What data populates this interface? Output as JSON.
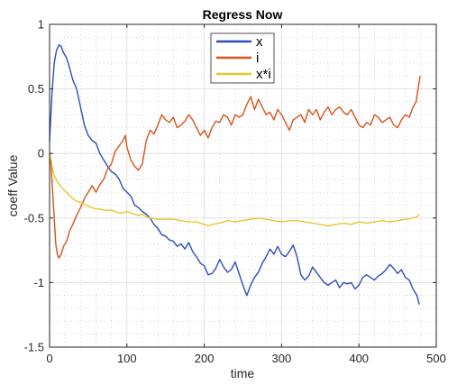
{
  "chart_data": {
    "type": "line",
    "title": "Regress Now",
    "xlabel": "time",
    "ylabel": "coeff Value",
    "xlim": [
      0,
      500
    ],
    "ylim": [
      -1.5,
      1
    ],
    "xticks": [
      0,
      100,
      200,
      300,
      400,
      500
    ],
    "yticks": [
      -1.5,
      -1,
      -0.5,
      0,
      0.5,
      1
    ],
    "xtick_labels": [
      "0",
      "100",
      "200",
      "300",
      "400",
      "500"
    ],
    "ytick_labels": [
      "-1.5",
      "-1",
      "-0.5",
      "0",
      "0.5",
      "1"
    ],
    "grid": true,
    "minor_grid": true,
    "legend_position": "top-center",
    "series": [
      {
        "name": "x",
        "color": "#2c4fb8",
        "points": [
          [
            0,
            0.1
          ],
          [
            3,
            0.45
          ],
          [
            6,
            0.7
          ],
          [
            9,
            0.8
          ],
          [
            12,
            0.84
          ],
          [
            15,
            0.83
          ],
          [
            18,
            0.78
          ],
          [
            22,
            0.74
          ],
          [
            26,
            0.66
          ],
          [
            30,
            0.57
          ],
          [
            35,
            0.5
          ],
          [
            40,
            0.36
          ],
          [
            45,
            0.22
          ],
          [
            50,
            0.14
          ],
          [
            55,
            0.1
          ],
          [
            60,
            0.08
          ],
          [
            65,
            0.0
          ],
          [
            70,
            -0.05
          ],
          [
            75,
            -0.1
          ],
          [
            80,
            -0.14
          ],
          [
            85,
            -0.16
          ],
          [
            90,
            -0.2
          ],
          [
            95,
            -0.27
          ],
          [
            100,
            -0.3
          ],
          [
            105,
            -0.33
          ],
          [
            110,
            -0.4
          ],
          [
            115,
            -0.42
          ],
          [
            120,
            -0.45
          ],
          [
            125,
            -0.47
          ],
          [
            130,
            -0.5
          ],
          [
            135,
            -0.55
          ],
          [
            140,
            -0.58
          ],
          [
            145,
            -0.63
          ],
          [
            150,
            -0.64
          ],
          [
            155,
            -0.67
          ],
          [
            160,
            -0.68
          ],
          [
            165,
            -0.72
          ],
          [
            170,
            -0.7
          ],
          [
            175,
            -0.74
          ],
          [
            180,
            -0.69
          ],
          [
            185,
            -0.76
          ],
          [
            190,
            -0.8
          ],
          [
            195,
            -0.85
          ],
          [
            200,
            -0.87
          ],
          [
            205,
            -0.94
          ],
          [
            210,
            -0.93
          ],
          [
            215,
            -0.89
          ],
          [
            220,
            -0.82
          ],
          [
            225,
            -0.88
          ],
          [
            230,
            -0.92
          ],
          [
            235,
            -0.9
          ],
          [
            240,
            -0.84
          ],
          [
            245,
            -0.93
          ],
          [
            250,
            -1.02
          ],
          [
            255,
            -1.1
          ],
          [
            260,
            -1.02
          ],
          [
            265,
            -0.96
          ],
          [
            270,
            -0.92
          ],
          [
            275,
            -0.85
          ],
          [
            280,
            -0.8
          ],
          [
            285,
            -0.74
          ],
          [
            290,
            -0.78
          ],
          [
            295,
            -0.72
          ],
          [
            300,
            -0.78
          ],
          [
            305,
            -0.8
          ],
          [
            310,
            -0.76
          ],
          [
            315,
            -0.71
          ],
          [
            320,
            -0.8
          ],
          [
            325,
            -0.94
          ],
          [
            330,
            -0.98
          ],
          [
            335,
            -0.95
          ],
          [
            340,
            -0.88
          ],
          [
            345,
            -0.92
          ],
          [
            350,
            -0.96
          ],
          [
            355,
            -1.0
          ],
          [
            360,
            -1.02
          ],
          [
            365,
            -1.0
          ],
          [
            370,
            -0.98
          ],
          [
            375,
            -1.04
          ],
          [
            380,
            -1.0
          ],
          [
            385,
            -1.01
          ],
          [
            390,
            -1.0
          ],
          [
            395,
            -1.05
          ],
          [
            400,
            -1.02
          ],
          [
            405,
            -0.96
          ],
          [
            410,
            -0.94
          ],
          [
            415,
            -0.96
          ],
          [
            420,
            -0.98
          ],
          [
            425,
            -0.95
          ],
          [
            430,
            -0.93
          ],
          [
            435,
            -0.9
          ],
          [
            440,
            -0.86
          ],
          [
            445,
            -0.89
          ],
          [
            450,
            -0.93
          ],
          [
            455,
            -0.9
          ],
          [
            460,
            -0.96
          ],
          [
            465,
            -0.98
          ],
          [
            470,
            -1.05
          ],
          [
            475,
            -1.1
          ],
          [
            478,
            -1.17
          ]
        ]
      },
      {
        "name": "i",
        "color": "#d95319",
        "points": [
          [
            0,
            0.0
          ],
          [
            2,
            -0.1
          ],
          [
            4,
            -0.3
          ],
          [
            6,
            -0.5
          ],
          [
            8,
            -0.7
          ],
          [
            10,
            -0.78
          ],
          [
            12,
            -0.81
          ],
          [
            15,
            -0.78
          ],
          [
            18,
            -0.72
          ],
          [
            22,
            -0.68
          ],
          [
            26,
            -0.6
          ],
          [
            30,
            -0.55
          ],
          [
            35,
            -0.48
          ],
          [
            40,
            -0.42
          ],
          [
            45,
            -0.35
          ],
          [
            50,
            -0.3
          ],
          [
            55,
            -0.25
          ],
          [
            60,
            -0.3
          ],
          [
            65,
            -0.24
          ],
          [
            70,
            -0.2
          ],
          [
            75,
            -0.12
          ],
          [
            80,
            -0.08
          ],
          [
            85,
            0.02
          ],
          [
            90,
            0.06
          ],
          [
            95,
            0.1
          ],
          [
            98,
            0.14
          ],
          [
            100,
            0.05
          ],
          [
            105,
            -0.05
          ],
          [
            110,
            -0.1
          ],
          [
            115,
            -0.13
          ],
          [
            120,
            -0.08
          ],
          [
            125,
            0.1
          ],
          [
            130,
            0.18
          ],
          [
            135,
            0.15
          ],
          [
            140,
            0.22
          ],
          [
            145,
            0.3
          ],
          [
            150,
            0.26
          ],
          [
            155,
            0.24
          ],
          [
            160,
            0.28
          ],
          [
            165,
            0.2
          ],
          [
            170,
            0.22
          ],
          [
            175,
            0.25
          ],
          [
            180,
            0.3
          ],
          [
            185,
            0.26
          ],
          [
            190,
            0.2
          ],
          [
            195,
            0.14
          ],
          [
            200,
            0.18
          ],
          [
            205,
            0.12
          ],
          [
            210,
            0.2
          ],
          [
            215,
            0.25
          ],
          [
            220,
            0.24
          ],
          [
            225,
            0.3
          ],
          [
            230,
            0.28
          ],
          [
            235,
            0.22
          ],
          [
            240,
            0.3
          ],
          [
            245,
            0.28
          ],
          [
            250,
            0.3
          ],
          [
            255,
            0.38
          ],
          [
            260,
            0.44
          ],
          [
            265,
            0.34
          ],
          [
            270,
            0.42
          ],
          [
            275,
            0.36
          ],
          [
            280,
            0.3
          ],
          [
            285,
            0.32
          ],
          [
            290,
            0.26
          ],
          [
            295,
            0.34
          ],
          [
            300,
            0.3
          ],
          [
            305,
            0.24
          ],
          [
            310,
            0.18
          ],
          [
            315,
            0.26
          ],
          [
            320,
            0.28
          ],
          [
            325,
            0.3
          ],
          [
            330,
            0.24
          ],
          [
            335,
            0.34
          ],
          [
            340,
            0.3
          ],
          [
            345,
            0.34
          ],
          [
            350,
            0.26
          ],
          [
            355,
            0.32
          ],
          [
            360,
            0.36
          ],
          [
            365,
            0.3
          ],
          [
            370,
            0.34
          ],
          [
            375,
            0.36
          ],
          [
            380,
            0.32
          ],
          [
            385,
            0.3
          ],
          [
            390,
            0.34
          ],
          [
            395,
            0.28
          ],
          [
            400,
            0.22
          ],
          [
            405,
            0.2
          ],
          [
            410,
            0.24
          ],
          [
            415,
            0.22
          ],
          [
            420,
            0.3
          ],
          [
            425,
            0.28
          ],
          [
            430,
            0.24
          ],
          [
            435,
            0.26
          ],
          [
            440,
            0.28
          ],
          [
            445,
            0.22
          ],
          [
            450,
            0.2
          ],
          [
            455,
            0.26
          ],
          [
            460,
            0.3
          ],
          [
            465,
            0.28
          ],
          [
            470,
            0.36
          ],
          [
            474,
            0.4
          ],
          [
            477,
            0.52
          ],
          [
            479,
            0.6
          ]
        ]
      },
      {
        "name": "x*i",
        "color": "#e8c52e",
        "points": [
          [
            0,
            0.0
          ],
          [
            2,
            -0.05
          ],
          [
            4,
            -0.13
          ],
          [
            6,
            -0.17
          ],
          [
            10,
            -0.22
          ],
          [
            15,
            -0.26
          ],
          [
            20,
            -0.29
          ],
          [
            25,
            -0.32
          ],
          [
            30,
            -0.35
          ],
          [
            35,
            -0.37
          ],
          [
            40,
            -0.38
          ],
          [
            45,
            -0.39
          ],
          [
            50,
            -0.41
          ],
          [
            55,
            -0.42
          ],
          [
            60,
            -0.43
          ],
          [
            65,
            -0.43
          ],
          [
            70,
            -0.44
          ],
          [
            75,
            -0.44
          ],
          [
            80,
            -0.44
          ],
          [
            85,
            -0.45
          ],
          [
            90,
            -0.46
          ],
          [
            95,
            -0.46
          ],
          [
            100,
            -0.45
          ],
          [
            105,
            -0.46
          ],
          [
            110,
            -0.47
          ],
          [
            115,
            -0.48
          ],
          [
            120,
            -0.47
          ],
          [
            125,
            -0.49
          ],
          [
            130,
            -0.5
          ],
          [
            140,
            -0.51
          ],
          [
            150,
            -0.51
          ],
          [
            160,
            -0.51
          ],
          [
            170,
            -0.52
          ],
          [
            180,
            -0.53
          ],
          [
            190,
            -0.53
          ],
          [
            200,
            -0.55
          ],
          [
            205,
            -0.56
          ],
          [
            210,
            -0.55
          ],
          [
            220,
            -0.54
          ],
          [
            230,
            -0.52
          ],
          [
            240,
            -0.53
          ],
          [
            250,
            -0.52
          ],
          [
            260,
            -0.51
          ],
          [
            270,
            -0.5
          ],
          [
            280,
            -0.51
          ],
          [
            290,
            -0.52
          ],
          [
            300,
            -0.53
          ],
          [
            310,
            -0.52
          ],
          [
            320,
            -0.52
          ],
          [
            330,
            -0.53
          ],
          [
            340,
            -0.54
          ],
          [
            350,
            -0.55
          ],
          [
            360,
            -0.56
          ],
          [
            370,
            -0.55
          ],
          [
            380,
            -0.54
          ],
          [
            390,
            -0.55
          ],
          [
            400,
            -0.53
          ],
          [
            410,
            -0.54
          ],
          [
            420,
            -0.53
          ],
          [
            430,
            -0.52
          ],
          [
            440,
            -0.53
          ],
          [
            450,
            -0.52
          ],
          [
            460,
            -0.51
          ],
          [
            470,
            -0.5
          ],
          [
            475,
            -0.49
          ],
          [
            478,
            -0.47
          ]
        ]
      }
    ]
  }
}
